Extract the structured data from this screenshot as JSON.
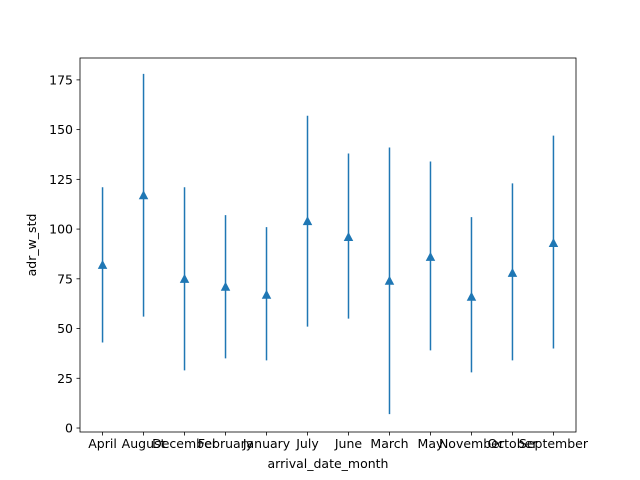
{
  "chart_data": {
    "type": "scatter",
    "marker": "triangle-up",
    "errorbars": true,
    "xlabel": "arrival_date_month",
    "ylabel": "adr_w_std",
    "ylim": [
      -2,
      186
    ],
    "yticks": [
      0,
      25,
      50,
      75,
      100,
      125,
      150,
      175
    ],
    "grid": false,
    "categories": [
      "April",
      "August",
      "December",
      "February",
      "January",
      "July",
      "June",
      "March",
      "May",
      "November",
      "October",
      "September"
    ],
    "series": [
      {
        "values": [
          82,
          117,
          75,
          71,
          67,
          104,
          96,
          74,
          86,
          66,
          78,
          93
        ],
        "lower": [
          43,
          56,
          29,
          35,
          34,
          51,
          55,
          7,
          39,
          28,
          34,
          40
        ],
        "upper": [
          121,
          178,
          121,
          107,
          101,
          157,
          138,
          141,
          134,
          106,
          123,
          147
        ],
        "color": "#1f77b4"
      }
    ]
  }
}
